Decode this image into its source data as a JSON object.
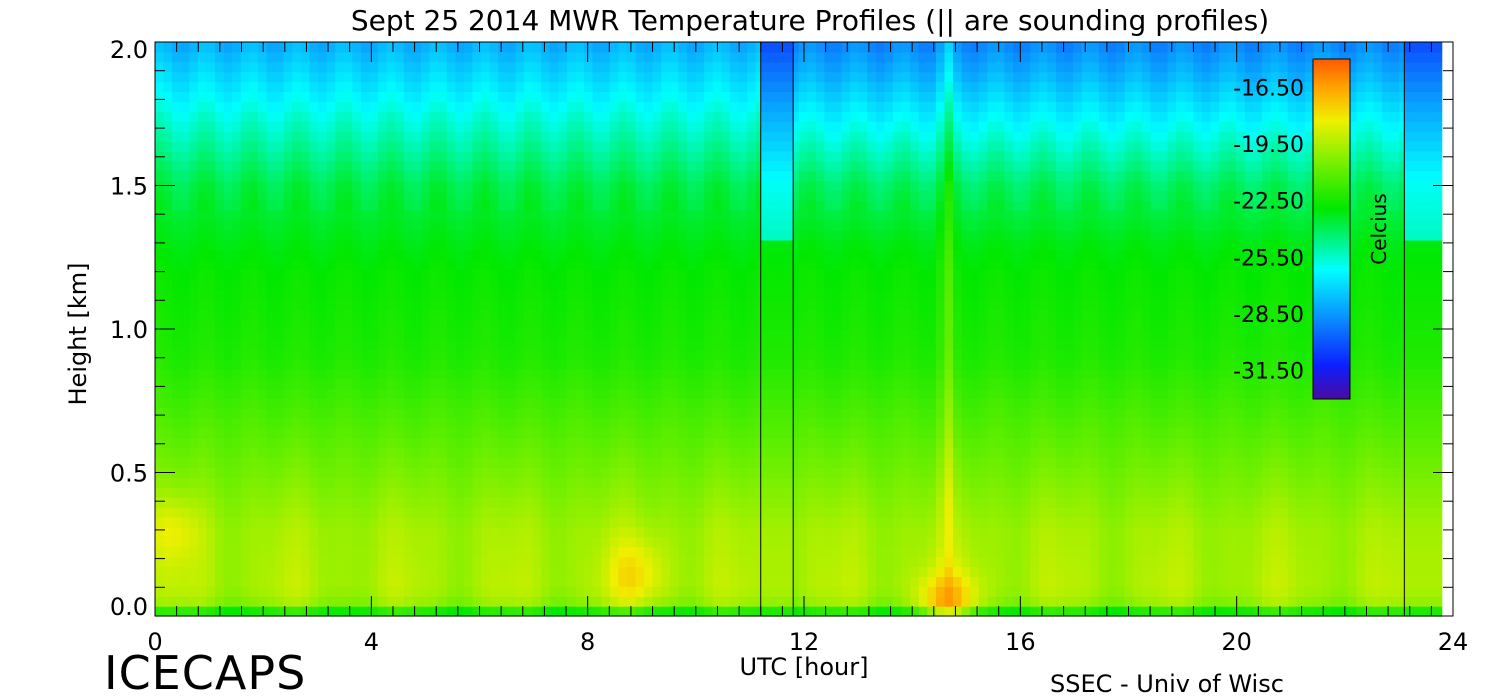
{
  "chart_data": {
    "type": "heatmap",
    "title": "Sept 25 2014 MWR Temperature Profiles (|| are sounding profiles)",
    "xlabel": "UTC [hour]",
    "ylabel": "Height [km]",
    "xlim": [
      0,
      24
    ],
    "ylim": [
      0,
      2
    ],
    "x_ticks": [
      0,
      4,
      8,
      12,
      16,
      20,
      24
    ],
    "x_tick_labels": [
      "0",
      "4",
      "8",
      "12",
      "16",
      "20",
      "24"
    ],
    "y_ticks": [
      0,
      0.5,
      1.0,
      1.5,
      2.0
    ],
    "y_tick_labels": [
      "0.0",
      "0.5",
      "1.0",
      "1.5",
      "2.0"
    ],
    "x_minor_step": 0.4,
    "y_minor_step": 0.1,
    "sounding_markers_utc": [
      11.2,
      11.8,
      23.1
    ],
    "colorbar": {
      "label": "Celcius",
      "range": [
        -33,
        -15
      ],
      "tick_values": [
        -16.5,
        -19.5,
        -22.5,
        -25.5,
        -28.5,
        -31.5
      ],
      "tick_labels": [
        "-16.50",
        "-19.50",
        "-22.50",
        "-25.50",
        "-28.50",
        "-31.50"
      ]
    },
    "profile": {
      "heights_km": [
        0.0,
        0.05,
        0.1,
        0.3,
        0.6,
        0.9,
        1.2,
        1.5,
        1.75,
        2.0
      ],
      "temperatures_c": [
        -23.5,
        -20.0,
        -19.5,
        -19.7,
        -21.0,
        -22.3,
        -22.8,
        -23.8,
        -25.8,
        -28.0
      ],
      "warm_anomalies": [
        {
          "utc": 0.3,
          "height_km": 0.3,
          "delta_c": 1.2
        },
        {
          "utc": 8.9,
          "height_km": 0.15,
          "delta_c": 1.6
        },
        {
          "utc": 14.65,
          "height_km": 0.03,
          "delta_c": 3.0
        }
      ]
    }
  },
  "brand": "ICECAPS",
  "credit": "SSEC - Univ of Wisc"
}
